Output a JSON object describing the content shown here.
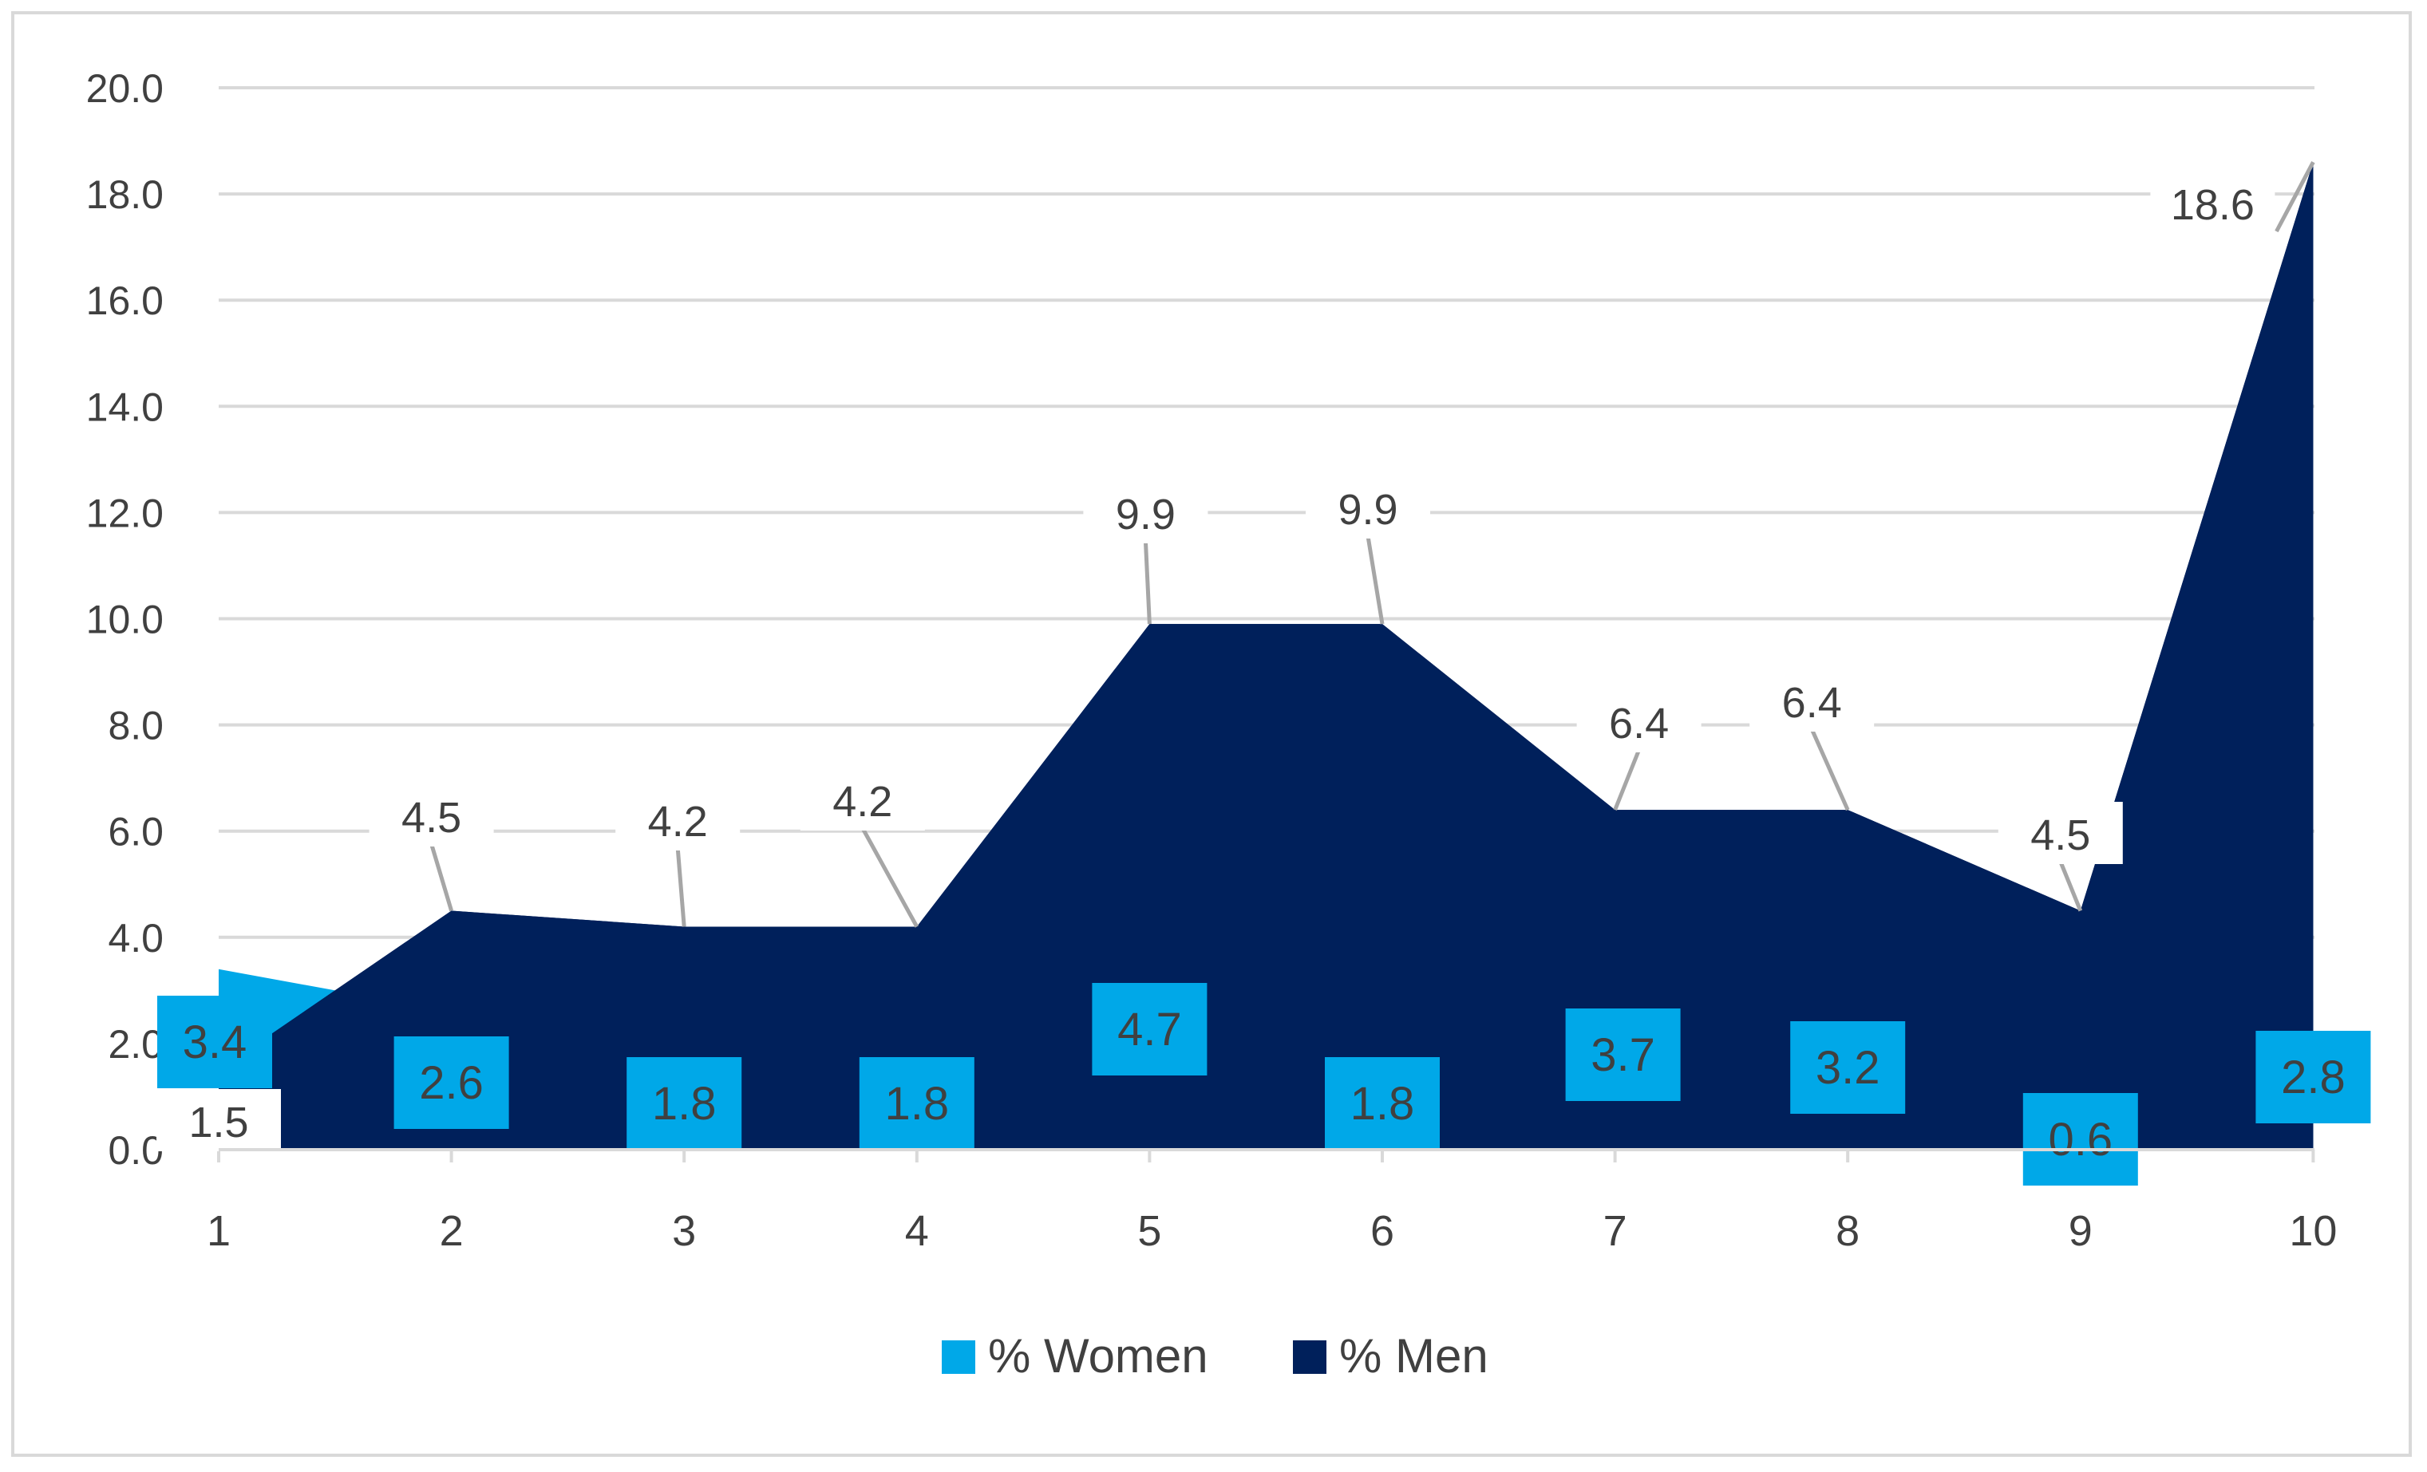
{
  "chart_data": {
    "type": "area",
    "categories": [
      "1",
      "2",
      "3",
      "4",
      "5",
      "6",
      "7",
      "8",
      "9",
      "10"
    ],
    "series": [
      {
        "name": "% Women",
        "color": "#00a8e8",
        "values": [
          3.4,
          2.6,
          1.8,
          1.8,
          4.7,
          1.8,
          3.7,
          3.2,
          0.6,
          2.8
        ]
      },
      {
        "name": "% Men",
        "color": "#00205b",
        "values": [
          1.5,
          4.5,
          4.2,
          4.2,
          9.9,
          9.9,
          6.4,
          6.4,
          4.5,
          18.6
        ]
      }
    ],
    "y_ticks": [
      "0.0",
      "2.0",
      "4.0",
      "6.0",
      "8.0",
      "10.0",
      "12.0",
      "14.0",
      "16.0",
      "18.0",
      "20.0"
    ],
    "ylim": [
      0,
      20
    ],
    "title": "",
    "xlabel": "",
    "ylabel": "",
    "grid": true,
    "legend_position": "bottom",
    "colors": {
      "gridline": "#d9d9d9",
      "axis": "#d9d9d9",
      "label_text": "#404040",
      "leader": "#a6a6a6"
    }
  }
}
